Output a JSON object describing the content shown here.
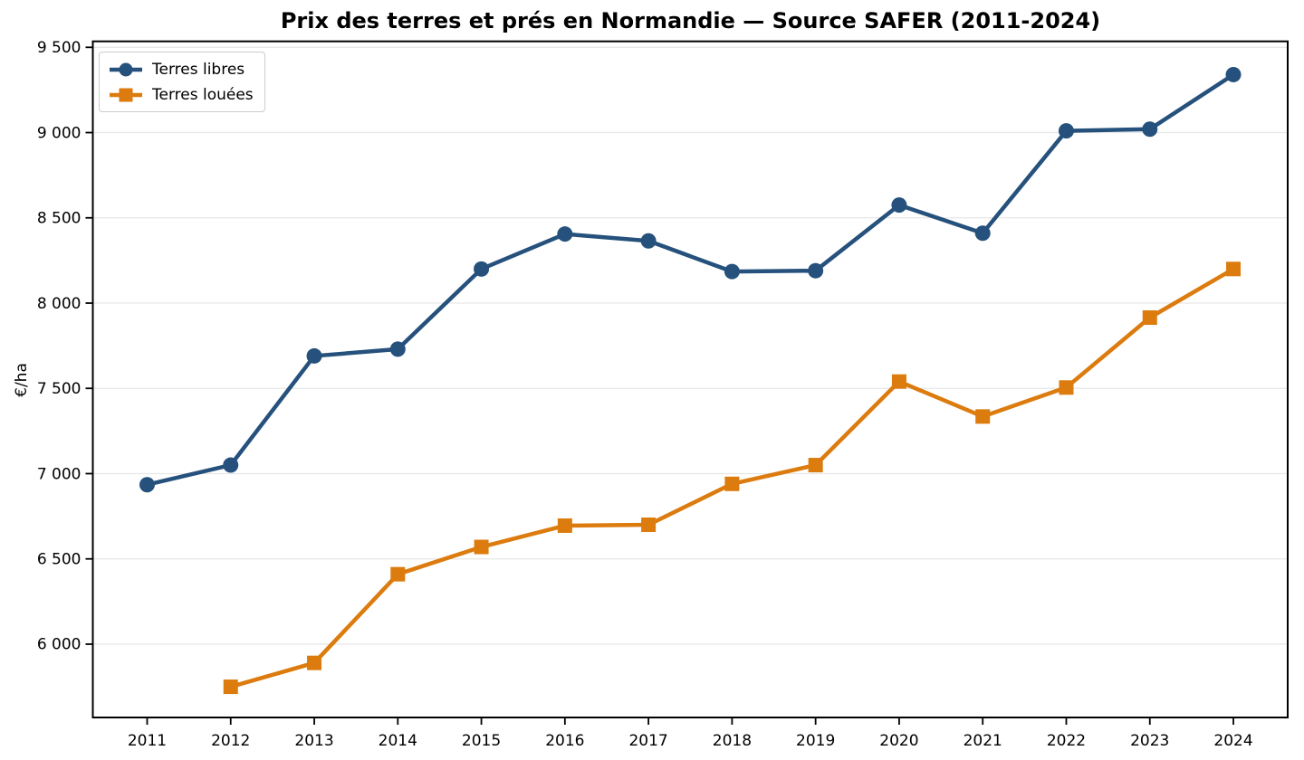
{
  "chart_data": {
    "type": "line",
    "title": "Prix des terres et prés en Normandie — Source SAFER (2011-2024)",
    "xlabel": "",
    "ylabel": "€/ha",
    "categories": [
      2011,
      2012,
      2013,
      2014,
      2015,
      2016,
      2017,
      2018,
      2019,
      2020,
      2021,
      2022,
      2023,
      2024
    ],
    "y_ticks": [
      6000,
      6500,
      7000,
      7500,
      8000,
      8500,
      9000,
      9500
    ],
    "y_tick_labels": [
      "6 000",
      "6 500",
      "7 000",
      "7 500",
      "8 000",
      "8 500",
      "9 000",
      "9 500"
    ],
    "ylim": [
      5570,
      9535
    ],
    "grid": "horizontal-only",
    "grid_color": "#e7e7e7",
    "legend_position": "upper-left",
    "series": [
      {
        "name": "Terres libres",
        "color": "#25517c",
        "marker": "circle",
        "x": [
          2011,
          2012,
          2013,
          2014,
          2015,
          2016,
          2017,
          2018,
          2019,
          2020,
          2021,
          2022,
          2023,
          2024
        ],
        "values": [
          6935,
          7050,
          7690,
          7730,
          8200,
          8405,
          8365,
          8185,
          8190,
          8575,
          8410,
          9010,
          9020,
          9340
        ]
      },
      {
        "name": "Terres louées",
        "color": "#dc7b0e",
        "marker": "square",
        "x": [
          2012,
          2013,
          2014,
          2015,
          2016,
          2017,
          2018,
          2019,
          2020,
          2021,
          2022,
          2023,
          2024
        ],
        "values": [
          5750,
          5890,
          6410,
          6570,
          6695,
          6700,
          6940,
          7050,
          7540,
          7335,
          7505,
          7915,
          8200
        ]
      }
    ]
  }
}
